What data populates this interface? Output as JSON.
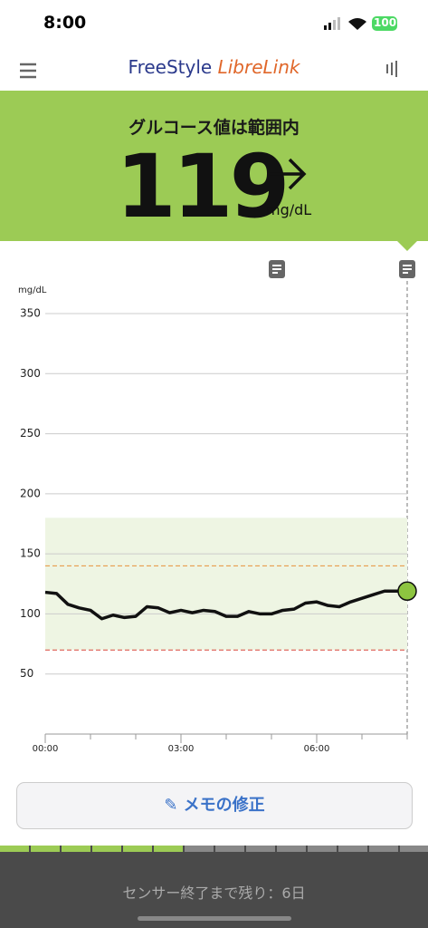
{
  "status_bar": {
    "time": "8:00",
    "battery": "100"
  },
  "header": {
    "brand_1": "FreeStyle",
    "brand_2": "LibreLink"
  },
  "banner": {
    "status": "グルコース値は範囲内",
    "value": "119",
    "unit": "mg/dL"
  },
  "chart_data": {
    "type": "line",
    "y_label": "mg/dL",
    "x": [
      0,
      15,
      30,
      45,
      60,
      75,
      90,
      105,
      120,
      135,
      150,
      165,
      180,
      195,
      210,
      225,
      240,
      255,
      270,
      285,
      300,
      315,
      330,
      345,
      360,
      375,
      390,
      405,
      420,
      435,
      450,
      465,
      480
    ],
    "series": [
      {
        "color": "#111111",
        "values": [
          118,
          117,
          108,
          105,
          103,
          96,
          99,
          97,
          98,
          106,
          105,
          101,
          103,
          101,
          103,
          102,
          98,
          98,
          102,
          100,
          100,
          103,
          104,
          109,
          110,
          107,
          106,
          110,
          113,
          116,
          119,
          119,
          119
        ]
      }
    ],
    "xlim": [
      0,
      480
    ],
    "xticks": [
      {
        "value": 0,
        "label": "00:00"
      },
      {
        "value": 180,
        "label": "03:00"
      },
      {
        "value": 360,
        "label": "06:00"
      }
    ],
    "minor_xticks": [
      60,
      120,
      240,
      300,
      420,
      480
    ],
    "ylim": [
      0,
      350
    ],
    "yticks": [
      50,
      100,
      150,
      200,
      250,
      300,
      350
    ],
    "grid": true,
    "target_range": [
      70,
      180
    ],
    "high_line": 140,
    "low_line": 70,
    "band_color": "#eef5e3",
    "high_color": "#e8923a",
    "low_color": "#d9463a",
    "point_color": "#8dc540"
  },
  "button": {
    "label": "メモの修正"
  },
  "footer": {
    "text": "センサー終了まで残り：6日"
  }
}
